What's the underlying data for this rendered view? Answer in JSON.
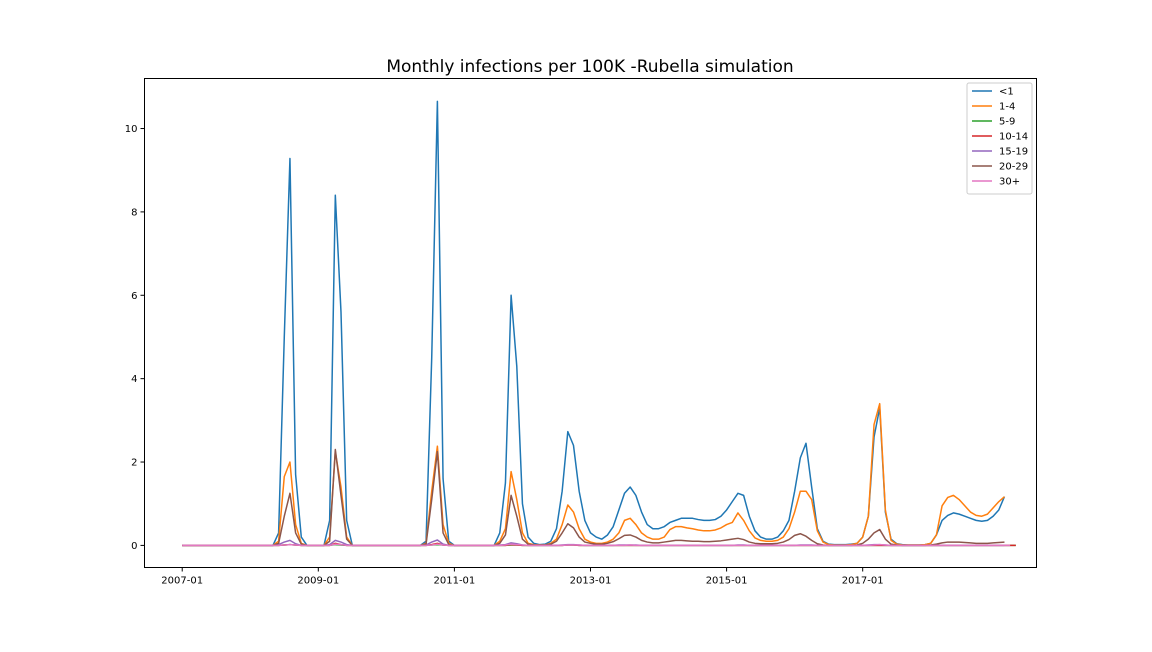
{
  "chart_data": {
    "type": "line",
    "title": "Monthly infections per 100K -Rubella simulation",
    "xlabel": "",
    "ylabel": "",
    "x_start": "2007-01",
    "x_end": "2018-12",
    "x_ticks": [
      "2007-01",
      "2009-01",
      "2011-01",
      "2013-01",
      "2015-01",
      "2017-01"
    ],
    "y_ticks": [
      0,
      2,
      4,
      6,
      8,
      10
    ],
    "ylim": [
      -0.53,
      11.2
    ],
    "grid": false,
    "legend_position": "top-right",
    "series": [
      {
        "name": "<1",
        "color": "#1f77b4",
        "values": [
          0,
          0,
          0,
          0,
          0,
          0,
          0,
          0,
          0,
          0,
          0,
          0,
          0,
          0,
          0,
          0,
          0,
          0.3,
          5.0,
          9.28,
          1.7,
          0.2,
          0,
          0,
          0,
          0,
          0.6,
          8.4,
          5.6,
          0.6,
          0,
          0,
          0,
          0,
          0,
          0,
          0,
          0,
          0,
          0,
          0,
          0,
          0,
          0.1,
          4.5,
          10.65,
          1.6,
          0.1,
          0,
          0,
          0,
          0,
          0,
          0,
          0,
          0,
          0.3,
          1.5,
          6.0,
          4.3,
          1.0,
          0.2,
          0.05,
          0.02,
          0.03,
          0.1,
          0.4,
          1.3,
          2.73,
          2.4,
          1.3,
          0.6,
          0.3,
          0.2,
          0.15,
          0.25,
          0.45,
          0.85,
          1.25,
          1.4,
          1.2,
          0.8,
          0.5,
          0.4,
          0.4,
          0.45,
          0.55,
          0.6,
          0.65,
          0.65,
          0.65,
          0.62,
          0.6,
          0.6,
          0.62,
          0.7,
          0.85,
          1.05,
          1.25,
          1.2,
          0.7,
          0.35,
          0.2,
          0.15,
          0.15,
          0.2,
          0.35,
          0.6,
          1.3,
          2.1,
          2.45,
          1.4,
          0.4,
          0.1,
          0.03,
          0.02,
          0.02,
          0.02,
          0.03,
          0.05,
          0.2,
          0.7,
          2.6,
          3.3,
          0.8,
          0.15,
          0.04,
          0.02,
          0.01,
          0.01,
          0.01,
          0.02,
          0.05,
          0.25,
          0.6,
          0.72,
          0.78,
          0.75,
          0.7,
          0.65,
          0.6,
          0.58,
          0.6,
          0.7,
          0.85,
          1.17
        ]
      },
      {
        "name": "1-4",
        "color": "#ff7f0e",
        "values": [
          0,
          0,
          0,
          0,
          0,
          0,
          0,
          0,
          0,
          0,
          0,
          0,
          0,
          0,
          0,
          0,
          0,
          0.1,
          1.65,
          2.0,
          0.5,
          0.05,
          0,
          0,
          0,
          0,
          0.2,
          2.25,
          1.4,
          0.2,
          0,
          0,
          0,
          0,
          0,
          0,
          0,
          0,
          0,
          0,
          0,
          0,
          0,
          0.05,
          1.3,
          2.38,
          0.5,
          0.05,
          0,
          0,
          0,
          0,
          0,
          0,
          0,
          0,
          0.1,
          0.4,
          1.77,
          1.1,
          0.3,
          0.05,
          0.02,
          0.01,
          0.01,
          0.05,
          0.15,
          0.5,
          0.97,
          0.8,
          0.4,
          0.15,
          0.08,
          0.05,
          0.05,
          0.08,
          0.15,
          0.3,
          0.6,
          0.65,
          0.5,
          0.3,
          0.2,
          0.15,
          0.15,
          0.2,
          0.38,
          0.45,
          0.45,
          0.42,
          0.4,
          0.37,
          0.35,
          0.35,
          0.37,
          0.42,
          0.5,
          0.55,
          0.78,
          0.6,
          0.35,
          0.18,
          0.12,
          0.1,
          0.1,
          0.12,
          0.2,
          0.4,
          0.8,
          1.3,
          1.3,
          1.1,
          0.35,
          0.08,
          0.02,
          0.01,
          0.01,
          0.01,
          0.02,
          0.05,
          0.2,
          0.7,
          2.9,
          3.4,
          0.85,
          0.12,
          0.03,
          0.01,
          0.01,
          0.01,
          0.01,
          0.02,
          0.05,
          0.25,
          0.95,
          1.15,
          1.2,
          1.1,
          0.95,
          0.8,
          0.72,
          0.7,
          0.75,
          0.9,
          1.05,
          1.17
        ]
      },
      {
        "name": "5-9",
        "color": "#2ca02c",
        "values": [
          0,
          0,
          0,
          0,
          0,
          0,
          0,
          0,
          0,
          0,
          0,
          0,
          0,
          0,
          0,
          0,
          0,
          0,
          0.01,
          0.02,
          0.01,
          0,
          0,
          0,
          0,
          0,
          0,
          0.02,
          0.01,
          0,
          0,
          0,
          0,
          0,
          0,
          0,
          0,
          0,
          0,
          0,
          0,
          0,
          0,
          0,
          0.01,
          0.02,
          0.01,
          0,
          0,
          0,
          0,
          0,
          0,
          0,
          0,
          0,
          0,
          0,
          0.01,
          0.01,
          0,
          0,
          0,
          0,
          0,
          0,
          0,
          0,
          0.01,
          0.01,
          0,
          0,
          0,
          0,
          0,
          0,
          0,
          0,
          0,
          0,
          0,
          0,
          0,
          0,
          0,
          0,
          0,
          0,
          0,
          0,
          0,
          0,
          0,
          0,
          0,
          0,
          0,
          0,
          0,
          0,
          0,
          0,
          0,
          0,
          0,
          0,
          0,
          0,
          0,
          0,
          0,
          0,
          0,
          0,
          0,
          0,
          0,
          0,
          0,
          0,
          0,
          0,
          0,
          0,
          0,
          0,
          0,
          0,
          0,
          0,
          0,
          0,
          0,
          0,
          0,
          0,
          0,
          0,
          0,
          0,
          0,
          0,
          0,
          0,
          0,
          0,
          0,
          0
        ]
      },
      {
        "name": "10-14",
        "color": "#d62728",
        "values": [
          0,
          0,
          0,
          0,
          0,
          0,
          0,
          0,
          0,
          0,
          0,
          0,
          0,
          0,
          0,
          0,
          0,
          0,
          0.01,
          0.02,
          0.01,
          0,
          0,
          0,
          0,
          0,
          0,
          0.05,
          0.02,
          0,
          0,
          0,
          0,
          0,
          0,
          0,
          0,
          0,
          0,
          0,
          0,
          0,
          0,
          0,
          0.02,
          0.05,
          0.01,
          0,
          0,
          0,
          0,
          0,
          0,
          0,
          0,
          0,
          0,
          0,
          0.02,
          0.01,
          0,
          0,
          0,
          0,
          0,
          0,
          0,
          0,
          0.01,
          0.01,
          0,
          0,
          0,
          0,
          0,
          0,
          0,
          0,
          0,
          0,
          0,
          0,
          0,
          0,
          0,
          0,
          0,
          0,
          0,
          0,
          0,
          0,
          0,
          0,
          0,
          0,
          0,
          0,
          0,
          0,
          0,
          0,
          0,
          0,
          0,
          0,
          0,
          0,
          0,
          0,
          0,
          0,
          0,
          0,
          0,
          0,
          0,
          0,
          0,
          0,
          0,
          0,
          0,
          0,
          0,
          0,
          0,
          0,
          0,
          0,
          0,
          0,
          0,
          0,
          0,
          0,
          0,
          0,
          0,
          0,
          0,
          0,
          0,
          0,
          0,
          0,
          0,
          0
        ]
      },
      {
        "name": "15-19",
        "color": "#9467bd",
        "values": [
          0,
          0,
          0,
          0,
          0,
          0,
          0,
          0,
          0,
          0,
          0,
          0,
          0,
          0,
          0,
          0,
          0,
          0.02,
          0.08,
          0.12,
          0.04,
          0,
          0,
          0,
          0,
          0,
          0.02,
          0.12,
          0.08,
          0.02,
          0,
          0,
          0,
          0,
          0,
          0,
          0,
          0,
          0,
          0,
          0,
          0,
          0,
          0.01,
          0.08,
          0.13,
          0.03,
          0,
          0,
          0,
          0,
          0,
          0,
          0,
          0,
          0,
          0.01,
          0.02,
          0.06,
          0.04,
          0.01,
          0,
          0,
          0,
          0,
          0,
          0,
          0.01,
          0.02,
          0.02,
          0.01,
          0,
          0,
          0,
          0,
          0,
          0,
          0.01,
          0.01,
          0.01,
          0.01,
          0,
          0,
          0,
          0,
          0,
          0,
          0,
          0,
          0,
          0,
          0,
          0,
          0,
          0,
          0,
          0,
          0,
          0.01,
          0.01,
          0,
          0,
          0,
          0,
          0,
          0,
          0,
          0,
          0,
          0.01,
          0.01,
          0.01,
          0,
          0,
          0,
          0,
          0,
          0,
          0,
          0,
          0,
          0.01,
          0.02,
          0.02,
          0.01,
          0,
          0,
          0,
          0,
          0,
          0,
          0,
          0,
          0,
          0,
          0,
          0,
          0,
          0,
          0,
          0,
          0,
          0,
          0,
          0,
          0
        ]
      },
      {
        "name": "20-29",
        "color": "#8c564b",
        "values": [
          0,
          0,
          0,
          0,
          0,
          0,
          0,
          0,
          0,
          0,
          0,
          0,
          0,
          0,
          0,
          0,
          0,
          0.05,
          0.7,
          1.25,
          0.3,
          0.03,
          0,
          0,
          0,
          0,
          0.1,
          2.3,
          1.2,
          0.15,
          0,
          0,
          0,
          0,
          0,
          0,
          0,
          0,
          0,
          0,
          0,
          0,
          0,
          0.03,
          1.1,
          2.25,
          0.3,
          0.02,
          0,
          0,
          0,
          0,
          0,
          0,
          0,
          0,
          0.05,
          0.25,
          1.2,
          0.7,
          0.15,
          0.03,
          0.01,
          0.01,
          0.01,
          0.03,
          0.1,
          0.3,
          0.52,
          0.42,
          0.2,
          0.08,
          0.05,
          0.03,
          0.03,
          0.05,
          0.09,
          0.16,
          0.24,
          0.25,
          0.2,
          0.12,
          0.08,
          0.06,
          0.06,
          0.08,
          0.1,
          0.12,
          0.12,
          0.11,
          0.1,
          0.1,
          0.09,
          0.09,
          0.1,
          0.11,
          0.13,
          0.15,
          0.17,
          0.14,
          0.08,
          0.05,
          0.04,
          0.04,
          0.04,
          0.05,
          0.08,
          0.14,
          0.24,
          0.28,
          0.22,
          0.12,
          0.04,
          0.01,
          0,
          0,
          0,
          0,
          0,
          0.01,
          0.05,
          0.15,
          0.3,
          0.38,
          0.15,
          0.03,
          0.01,
          0,
          0,
          0,
          0,
          0,
          0.01,
          0.03,
          0.06,
          0.08,
          0.08,
          0.08,
          0.07,
          0.06,
          0.05,
          0.05,
          0.05,
          0.06,
          0.07,
          0.08
        ]
      },
      {
        "name": "30+",
        "color": "#e377c2",
        "values": [
          0,
          0,
          0,
          0,
          0,
          0,
          0,
          0,
          0,
          0,
          0,
          0,
          0,
          0,
          0,
          0,
          0,
          0,
          0.01,
          0.02,
          0.01,
          0,
          0,
          0,
          0,
          0,
          0,
          0.03,
          0.02,
          0,
          0,
          0,
          0,
          0,
          0,
          0,
          0,
          0,
          0,
          0,
          0,
          0,
          0,
          0,
          0.01,
          0.03,
          0.01,
          0,
          0,
          0,
          0,
          0,
          0,
          0,
          0,
          0,
          0,
          0.01,
          0.03,
          0.02,
          0.01,
          0,
          0,
          0,
          0,
          0,
          0,
          0,
          0.01,
          0.01,
          0.01,
          0,
          0,
          0,
          0,
          0,
          0,
          0,
          0,
          0.01,
          0,
          0,
          0,
          0,
          0,
          0,
          0,
          0,
          0,
          0,
          0,
          0,
          0,
          0,
          0,
          0,
          0,
          0,
          0,
          0,
          0,
          0,
          0,
          0,
          0,
          0,
          0,
          0,
          0,
          0,
          0,
          0,
          0,
          0,
          0,
          0,
          0,
          0,
          0,
          0,
          0,
          0,
          0.01,
          0.02,
          0.01,
          0,
          0,
          0,
          0,
          0,
          0,
          0,
          0,
          0,
          0,
          0,
          0,
          0,
          0,
          0,
          0,
          0,
          0,
          0,
          0,
          0,
          0
        ]
      }
    ]
  }
}
